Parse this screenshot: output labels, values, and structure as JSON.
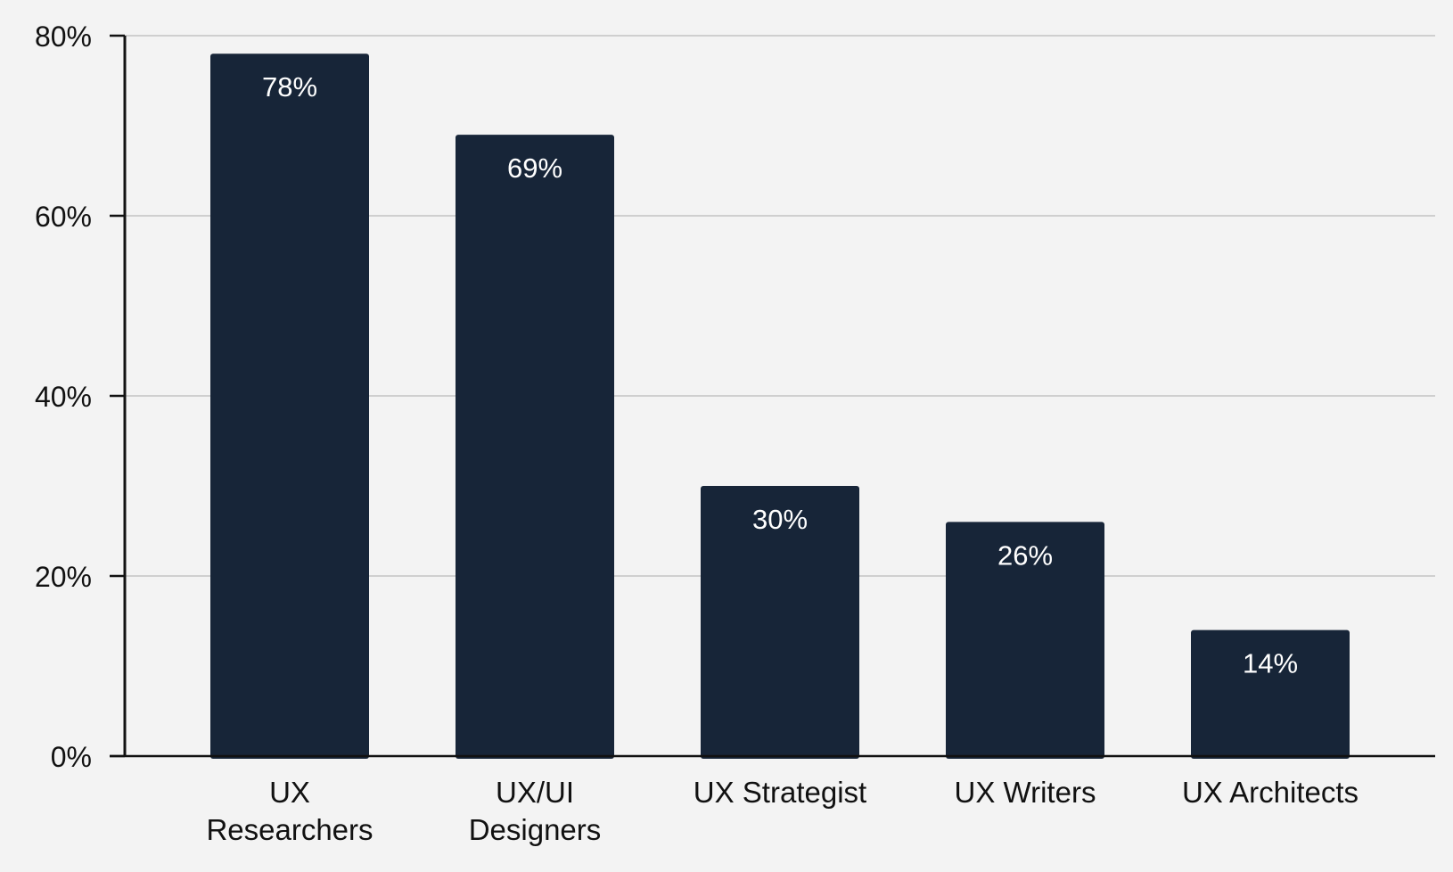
{
  "chart_data": {
    "type": "bar",
    "categories": [
      [
        "UX",
        "Researchers"
      ],
      [
        "UX/UI",
        "Designers"
      ],
      [
        "UX Strategist"
      ],
      [
        "UX Writers"
      ],
      [
        "UX Architects"
      ]
    ],
    "values": [
      78,
      69,
      30,
      26,
      14
    ],
    "value_labels": [
      "78%",
      "69%",
      "30%",
      "26%",
      "14%"
    ],
    "title": "",
    "xlabel": "",
    "ylabel": "",
    "ylim": [
      0,
      80
    ],
    "yticks": [
      0,
      20,
      40,
      60,
      80
    ],
    "ytick_labels": [
      "0%",
      "20%",
      "40%",
      "60%",
      "80%"
    ],
    "grid": true,
    "legend": "none"
  },
  "colors": {
    "bar": "#172538",
    "background": "#f3f3f3",
    "grid": "#cfcfcf",
    "axis": "#111111",
    "value_label": "#ffffff"
  }
}
